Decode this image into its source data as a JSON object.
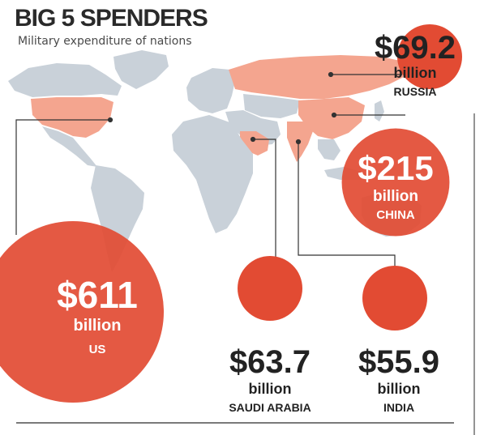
{
  "header": {
    "title": "BIG 5 SPENDERS",
    "subtitle": "Military expenditure of nations"
  },
  "colors": {
    "bubble": "#e24b33",
    "highlight_country": "#f4a58f",
    "other_land": "#c9d1d9",
    "text_dark": "#2a2a2a",
    "leader_line": "#333333"
  },
  "chart_data": {
    "type": "bubble-map",
    "title": "BIG 5 SPENDERS",
    "subtitle": "Military expenditure of nations",
    "unit": "billion",
    "series": [
      {
        "country": "US",
        "amount": "$611",
        "value": 611,
        "unit": "billion"
      },
      {
        "country": "CHINA",
        "amount": "$215",
        "value": 215,
        "unit": "billion"
      },
      {
        "country": "RUSSIA",
        "amount": "$69.2",
        "value": 69.2,
        "unit": "billion"
      },
      {
        "country": "SAUDI ARABIA",
        "amount": "$63.7",
        "value": 63.7,
        "unit": "billion"
      },
      {
        "country": "INDIA",
        "amount": "$55.9",
        "value": 55.9,
        "unit": "billion"
      }
    ]
  }
}
